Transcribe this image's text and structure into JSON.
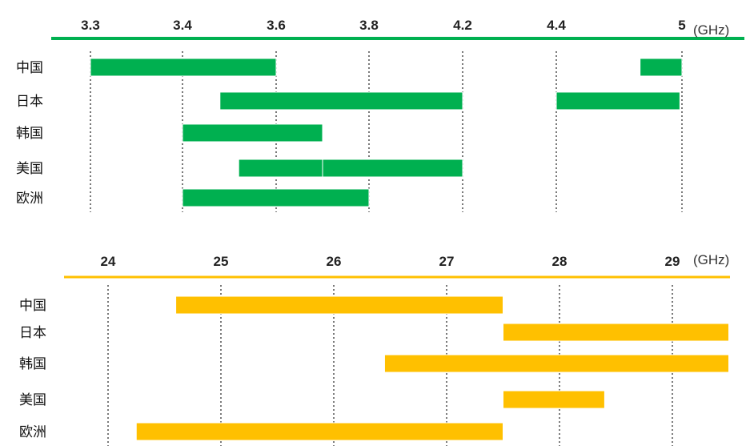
{
  "chart_data": [
    {
      "type": "bar",
      "orientation": "horizontal-range",
      "unit": "(GHz)",
      "color": "#00b050",
      "ticks": [
        "3.3",
        "3.4",
        "3.6",
        "3.8",
        "4.2",
        "4.4",
        "5"
      ],
      "categories": [
        "中国",
        "日本",
        "韩国",
        "美国",
        "欧洲"
      ],
      "ranges": [
        [
          [
            3.3,
            3.6
          ],
          [
            4.8,
            5.0
          ]
        ],
        [
          [
            3.48,
            4.2
          ],
          [
            4.4,
            4.99
          ]
        ],
        [
          [
            3.4,
            3.7
          ]
        ],
        [
          [
            3.52,
            3.7
          ],
          [
            3.7,
            4.2
          ]
        ],
        [
          [
            3.4,
            3.8
          ]
        ]
      ]
    },
    {
      "type": "bar",
      "orientation": "horizontal-range",
      "unit": "(GHz)",
      "color": "#ffc000",
      "ticks": [
        "24",
        "25",
        "26",
        "27",
        "28",
        "29"
      ],
      "categories": [
        "中国",
        "日本",
        "韩国",
        "美国",
        "欧洲"
      ],
      "ranges": [
        [
          [
            24.6,
            27.5
          ]
        ],
        [
          [
            27.5,
            29.5
          ]
        ],
        [
          [
            26.45,
            29.5
          ]
        ],
        [
          [
            27.5,
            28.4
          ]
        ],
        [
          [
            24.25,
            27.5
          ]
        ]
      ]
    }
  ]
}
